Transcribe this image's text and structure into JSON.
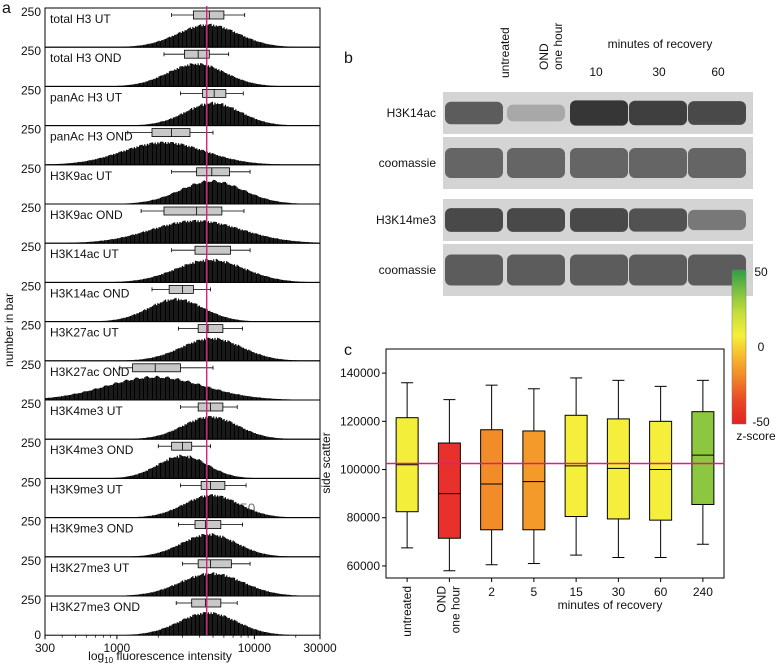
{
  "panel_labels": {
    "a": "a",
    "b": "b",
    "c": "c"
  },
  "panel_a": {
    "ylabel": "number in bar",
    "xlabel_prefix": "log",
    "xlabel_sub": "10",
    "xlabel_suffix": " fluorescence intensity",
    "x_ticks": [
      "300",
      "1000",
      "10000",
      "30000"
    ],
    "y_top_tick": "250",
    "y_bottom_tick": "0",
    "ref_color": "#d9207a",
    "watermark": "250"
  },
  "chart_data": [
    {
      "type": "histogram-boxplot",
      "title": "panel a",
      "x_scale": "log10",
      "xlim": [
        300,
        30000
      ],
      "reference_line": 4500,
      "ylim_each": [
        0,
        250
      ],
      "series": [
        {
          "name": "total H3 UT",
          "box": {
            "whisker_low": 2500,
            "q1": 3600,
            "median": 4700,
            "q3": 6000,
            "whisker_high": 8500
          },
          "peak": 4600,
          "spread": 0.22
        },
        {
          "name": "total H3 OND",
          "box": {
            "whisker_low": 2200,
            "q1": 3100,
            "median": 3900,
            "q3": 4700,
            "whisker_high": 6500
          },
          "peak": 3800,
          "spread": 0.21
        },
        {
          "name": "panAc H3 UT",
          "box": {
            "whisker_low": 2900,
            "q1": 4200,
            "median": 5100,
            "q3": 6200,
            "whisker_high": 8300
          },
          "peak": 5000,
          "spread": 0.2
        },
        {
          "name": "panAc H3 OND",
          "box": {
            "whisker_low": 1200,
            "q1": 1800,
            "median": 2500,
            "q3": 3400,
            "whisker_high": 5000
          },
          "peak": 2200,
          "spread": 0.3
        },
        {
          "name": "H3K9ac UT",
          "box": {
            "whisker_low": 2500,
            "q1": 3800,
            "median": 4900,
            "q3": 6600,
            "whisker_high": 9300
          },
          "peak": 4900,
          "spread": 0.23
        },
        {
          "name": "H3K9ac OND",
          "box": {
            "whisker_low": 1500,
            "q1": 2200,
            "median": 3800,
            "q3": 5800,
            "whisker_high": 8400
          },
          "peak": 3800,
          "spread": 0.33
        },
        {
          "name": "H3K14ac UT",
          "box": {
            "whisker_low": 2500,
            "q1": 3700,
            "median": 4500,
            "q3": 6700,
            "whisker_high": 9300
          },
          "peak": 4800,
          "spread": 0.25
        },
        {
          "name": "H3K14ac OND",
          "box": {
            "whisker_low": 1800,
            "q1": 2400,
            "median": 3000,
            "q3": 3600,
            "whisker_high": 4800
          },
          "peak": 2700,
          "spread": 0.2
        },
        {
          "name": "H3K27ac UT",
          "box": {
            "whisker_low": 2800,
            "q1": 3900,
            "median": 4600,
            "q3": 5900,
            "whisker_high": 8200
          },
          "peak": 4900,
          "spread": 0.22
        },
        {
          "name": "H3K27ac OND",
          "box": {
            "whisker_low": 1050,
            "q1": 1300,
            "median": 1900,
            "q3": 2900,
            "whisker_high": 5000
          },
          "peak": 1900,
          "spread": 0.36
        },
        {
          "name": "H3K4me3 UT",
          "box": {
            "whisker_low": 2900,
            "q1": 3900,
            "median": 4800,
            "q3": 5900,
            "whisker_high": 7500
          },
          "peak": 4800,
          "spread": 0.2
        },
        {
          "name": "H3K4me3 OND",
          "box": {
            "whisker_low": 2000,
            "q1": 2500,
            "median": 3000,
            "q3": 3500,
            "whisker_high": 4800
          },
          "peak": 3000,
          "spread": 0.18
        },
        {
          "name": "H3K9me3 UT",
          "box": {
            "whisker_low": 2900,
            "q1": 4100,
            "median": 4800,
            "q3": 6100,
            "whisker_high": 8700
          },
          "peak": 4900,
          "spread": 0.2
        },
        {
          "name": "H3K9me3 OND",
          "box": {
            "whisker_low": 2800,
            "q1": 3700,
            "median": 4400,
            "q3": 5700,
            "whisker_high": 8200
          },
          "peak": 4700,
          "spread": 0.2
        },
        {
          "name": "H3K27me3 UT",
          "box": {
            "whisker_low": 3000,
            "q1": 3900,
            "median": 4800,
            "q3": 6800,
            "whisker_high": 9300
          },
          "peak": 4900,
          "spread": 0.23
        },
        {
          "name": "H3K27me3 OND",
          "box": {
            "whisker_low": 2700,
            "q1": 3500,
            "median": 4400,
            "q3": 5700,
            "whisker_high": 7500
          },
          "peak": 4600,
          "spread": 0.21
        }
      ]
    },
    {
      "type": "western-blot",
      "title": "panel b",
      "lanes": [
        "untreated",
        "OND one hour",
        "10",
        "30",
        "60"
      ],
      "group_header": "minutes of recovery",
      "rows": [
        {
          "label": "H3K14ac",
          "band_intensity": [
            0.75,
            0.35,
            0.95,
            0.9,
            0.85
          ]
        },
        {
          "label": "coomassie",
          "band_intensity": [
            0.7,
            0.7,
            0.7,
            0.7,
            0.7
          ]
        },
        {
          "label": "H3K14me3",
          "band_intensity": [
            0.85,
            0.85,
            0.85,
            0.8,
            0.6
          ]
        },
        {
          "label": "coomassie",
          "band_intensity": [
            0.75,
            0.75,
            0.75,
            0.75,
            0.75
          ]
        }
      ]
    },
    {
      "type": "boxplot",
      "title": "panel c",
      "ylabel": "side scatter",
      "xlabel": "minutes of recovery",
      "ylim": [
        55000,
        150000
      ],
      "y_ticks": [
        60000,
        80000,
        100000,
        120000,
        140000
      ],
      "y_tick_labels": [
        "60000",
        "80000",
        "100000",
        "120000",
        "140000"
      ],
      "reference_line": 102500,
      "categories": [
        "untreated",
        "OND one hour",
        "2",
        "5",
        "15",
        "30",
        "60",
        "240"
      ],
      "category_label_lines": [
        [
          "untreated"
        ],
        [
          "OND",
          "one hour"
        ],
        [
          "2"
        ],
        [
          "5"
        ],
        [
          "15"
        ],
        [
          "30"
        ],
        [
          "60"
        ],
        [
          "240"
        ]
      ],
      "boxes": [
        {
          "whisker_low": 67500,
          "q1": 82500,
          "median": 102000,
          "q3": 121500,
          "whisker_high": 136000,
          "color": "#f2ee3a"
        },
        {
          "whisker_low": 58000,
          "q1": 71500,
          "median": 90000,
          "q3": 111000,
          "whisker_high": 129000,
          "color": "#e8312c"
        },
        {
          "whisker_low": 60500,
          "q1": 75000,
          "median": 94000,
          "q3": 116500,
          "whisker_high": 135000,
          "color": "#f28c28"
        },
        {
          "whisker_low": 61000,
          "q1": 75000,
          "median": 95000,
          "q3": 116000,
          "whisker_high": 133500,
          "color": "#f39a2a"
        },
        {
          "whisker_low": 64500,
          "q1": 80500,
          "median": 101500,
          "q3": 122500,
          "whisker_high": 138000,
          "color": "#f5ef3b"
        },
        {
          "whisker_low": 63500,
          "q1": 79500,
          "median": 100500,
          "q3": 121000,
          "whisker_high": 137000,
          "color": "#f5ef3b"
        },
        {
          "whisker_low": 63500,
          "q1": 79000,
          "median": 100000,
          "q3": 120000,
          "whisker_high": 134500,
          "color": "#f5ef3b"
        },
        {
          "whisker_low": 69000,
          "q1": 85500,
          "median": 106000,
          "q3": 124000,
          "whisker_high": 137000,
          "color": "#8dc63f"
        }
      ],
      "colorbar": {
        "title": "z-score",
        "ticks": [
          "50",
          "0",
          "-50"
        ],
        "colors": [
          "#2e9e44",
          "#7fc241",
          "#c9df3a",
          "#f6ef3a",
          "#f7b52d",
          "#f07f26",
          "#e94425",
          "#e2231f"
        ]
      }
    }
  ]
}
